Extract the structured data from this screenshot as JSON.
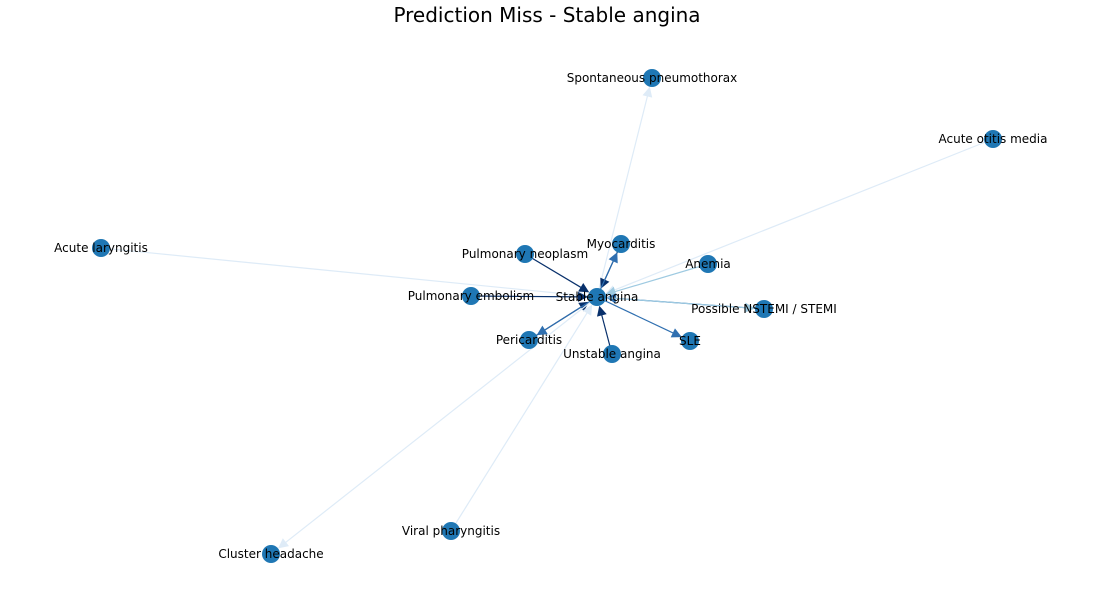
{
  "title": "Prediction Miss - Stable angina",
  "colors": {
    "node": "#1f77b4",
    "edge_dark": "#08306b",
    "edge_mid": "#2f6fb0",
    "edge_light": "#9ecae1",
    "edge_faint": "#deebf7"
  },
  "nodes": [
    {
      "id": "stable",
      "label": "Stable angina"
    },
    {
      "id": "pneumo",
      "label": "Spontaneous pneumothorax"
    },
    {
      "id": "otitis",
      "label": "Acute otitis media"
    },
    {
      "id": "laryngitis",
      "label": "Acute laryngitis"
    },
    {
      "id": "neoplasm",
      "label": "Pulmonary neoplasm"
    },
    {
      "id": "myocarditis",
      "label": "Myocarditis"
    },
    {
      "id": "anemia",
      "label": "Anemia"
    },
    {
      "id": "embolism",
      "label": "Pulmonary embolism"
    },
    {
      "id": "nstemi",
      "label": "Possible NSTEMI / STEMI"
    },
    {
      "id": "pericarditis",
      "label": "Pericarditis"
    },
    {
      "id": "sle",
      "label": "SLE"
    },
    {
      "id": "unstable",
      "label": "Unstable angina"
    },
    {
      "id": "pharyngitis",
      "label": "Viral pharyngitis"
    },
    {
      "id": "cluster",
      "label": "Cluster headache"
    }
  ],
  "edges": [
    {
      "source": "stable",
      "target": "pneumo",
      "shade": "edge_faint"
    },
    {
      "source": "otitis",
      "target": "stable",
      "shade": "edge_faint"
    },
    {
      "source": "laryngitis",
      "target": "stable",
      "shade": "edge_faint"
    },
    {
      "source": "neoplasm",
      "target": "stable",
      "shade": "edge_dark"
    },
    {
      "source": "myocarditis",
      "target": "stable",
      "shade": "edge_dark"
    },
    {
      "source": "stable",
      "target": "myocarditis",
      "shade": "edge_mid"
    },
    {
      "source": "anemia",
      "target": "stable",
      "shade": "edge_light"
    },
    {
      "source": "embolism",
      "target": "stable",
      "shade": "edge_dark"
    },
    {
      "source": "nstemi",
      "target": "stable",
      "shade": "edge_mid"
    },
    {
      "source": "stable",
      "target": "nstemi",
      "shade": "edge_light"
    },
    {
      "source": "pericarditis",
      "target": "stable",
      "shade": "edge_dark"
    },
    {
      "source": "stable",
      "target": "pericarditis",
      "shade": "edge_mid"
    },
    {
      "source": "stable",
      "target": "sle",
      "shade": "edge_mid"
    },
    {
      "source": "unstable",
      "target": "stable",
      "shade": "edge_dark"
    },
    {
      "source": "pharyngitis",
      "target": "stable",
      "shade": "edge_faint"
    },
    {
      "source": "stable",
      "target": "cluster",
      "shade": "edge_faint"
    }
  ]
}
